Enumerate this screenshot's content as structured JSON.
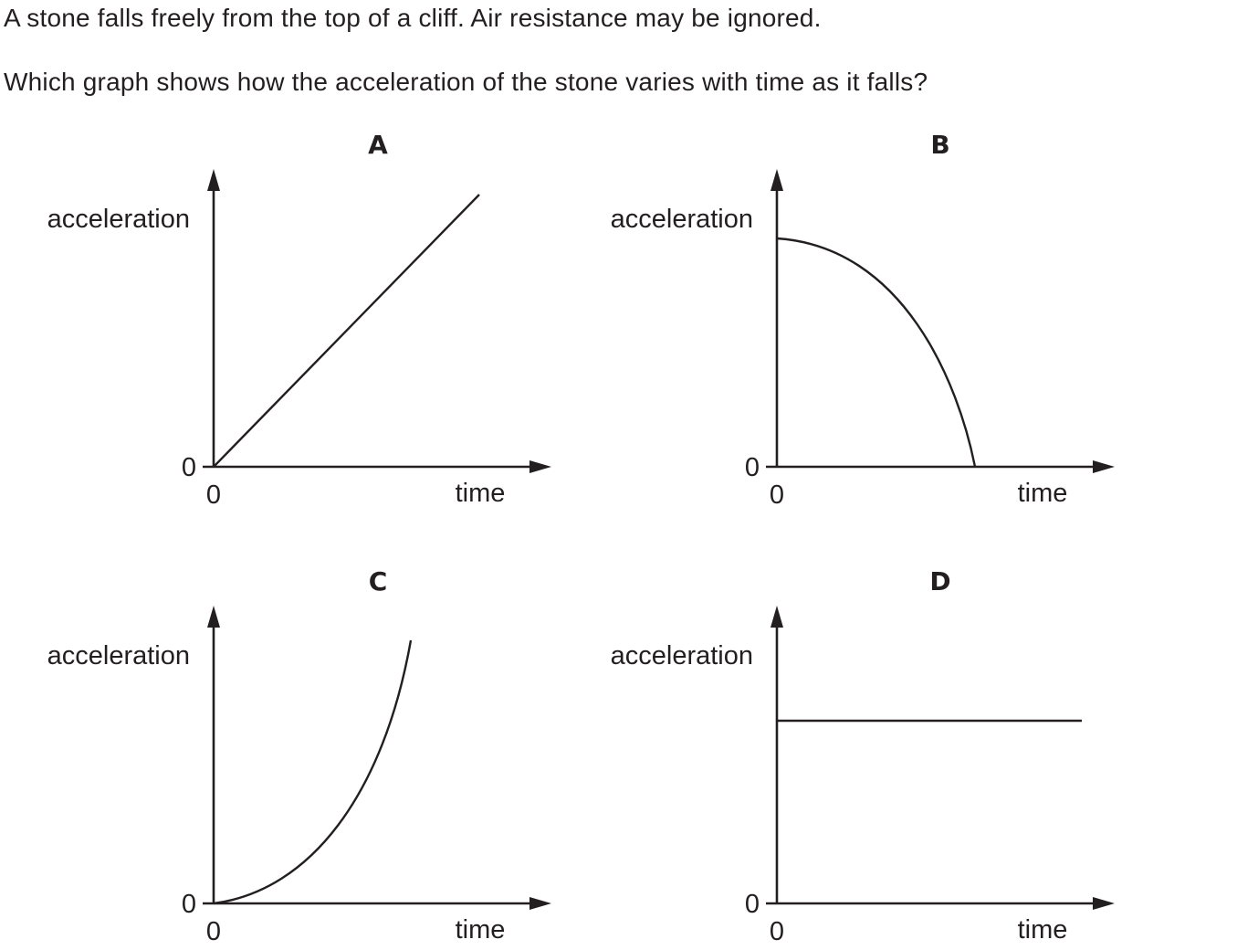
{
  "question": {
    "line1": "A stone falls freely from the top of a cliff. Air resistance may be ignored.",
    "line2": "Which graph shows how the acceleration of the stone varies with time as it falls?"
  },
  "graphs": [
    {
      "label": "A",
      "y_axis_label": "acceleration",
      "x_axis_label": "time",
      "y_origin_label": "0",
      "x_origin_label": "0",
      "shape": "linear-increasing"
    },
    {
      "label": "B",
      "y_axis_label": "acceleration",
      "x_axis_label": "time",
      "y_origin_label": "0",
      "x_origin_label": "0",
      "shape": "decreasing-curve-to-zero"
    },
    {
      "label": "C",
      "y_axis_label": "acceleration",
      "x_axis_label": "time",
      "y_origin_label": "0",
      "x_origin_label": "0",
      "shape": "increasing-curve"
    },
    {
      "label": "D",
      "y_axis_label": "acceleration",
      "x_axis_label": "time",
      "y_origin_label": "0",
      "x_origin_label": "0",
      "shape": "constant"
    }
  ]
}
